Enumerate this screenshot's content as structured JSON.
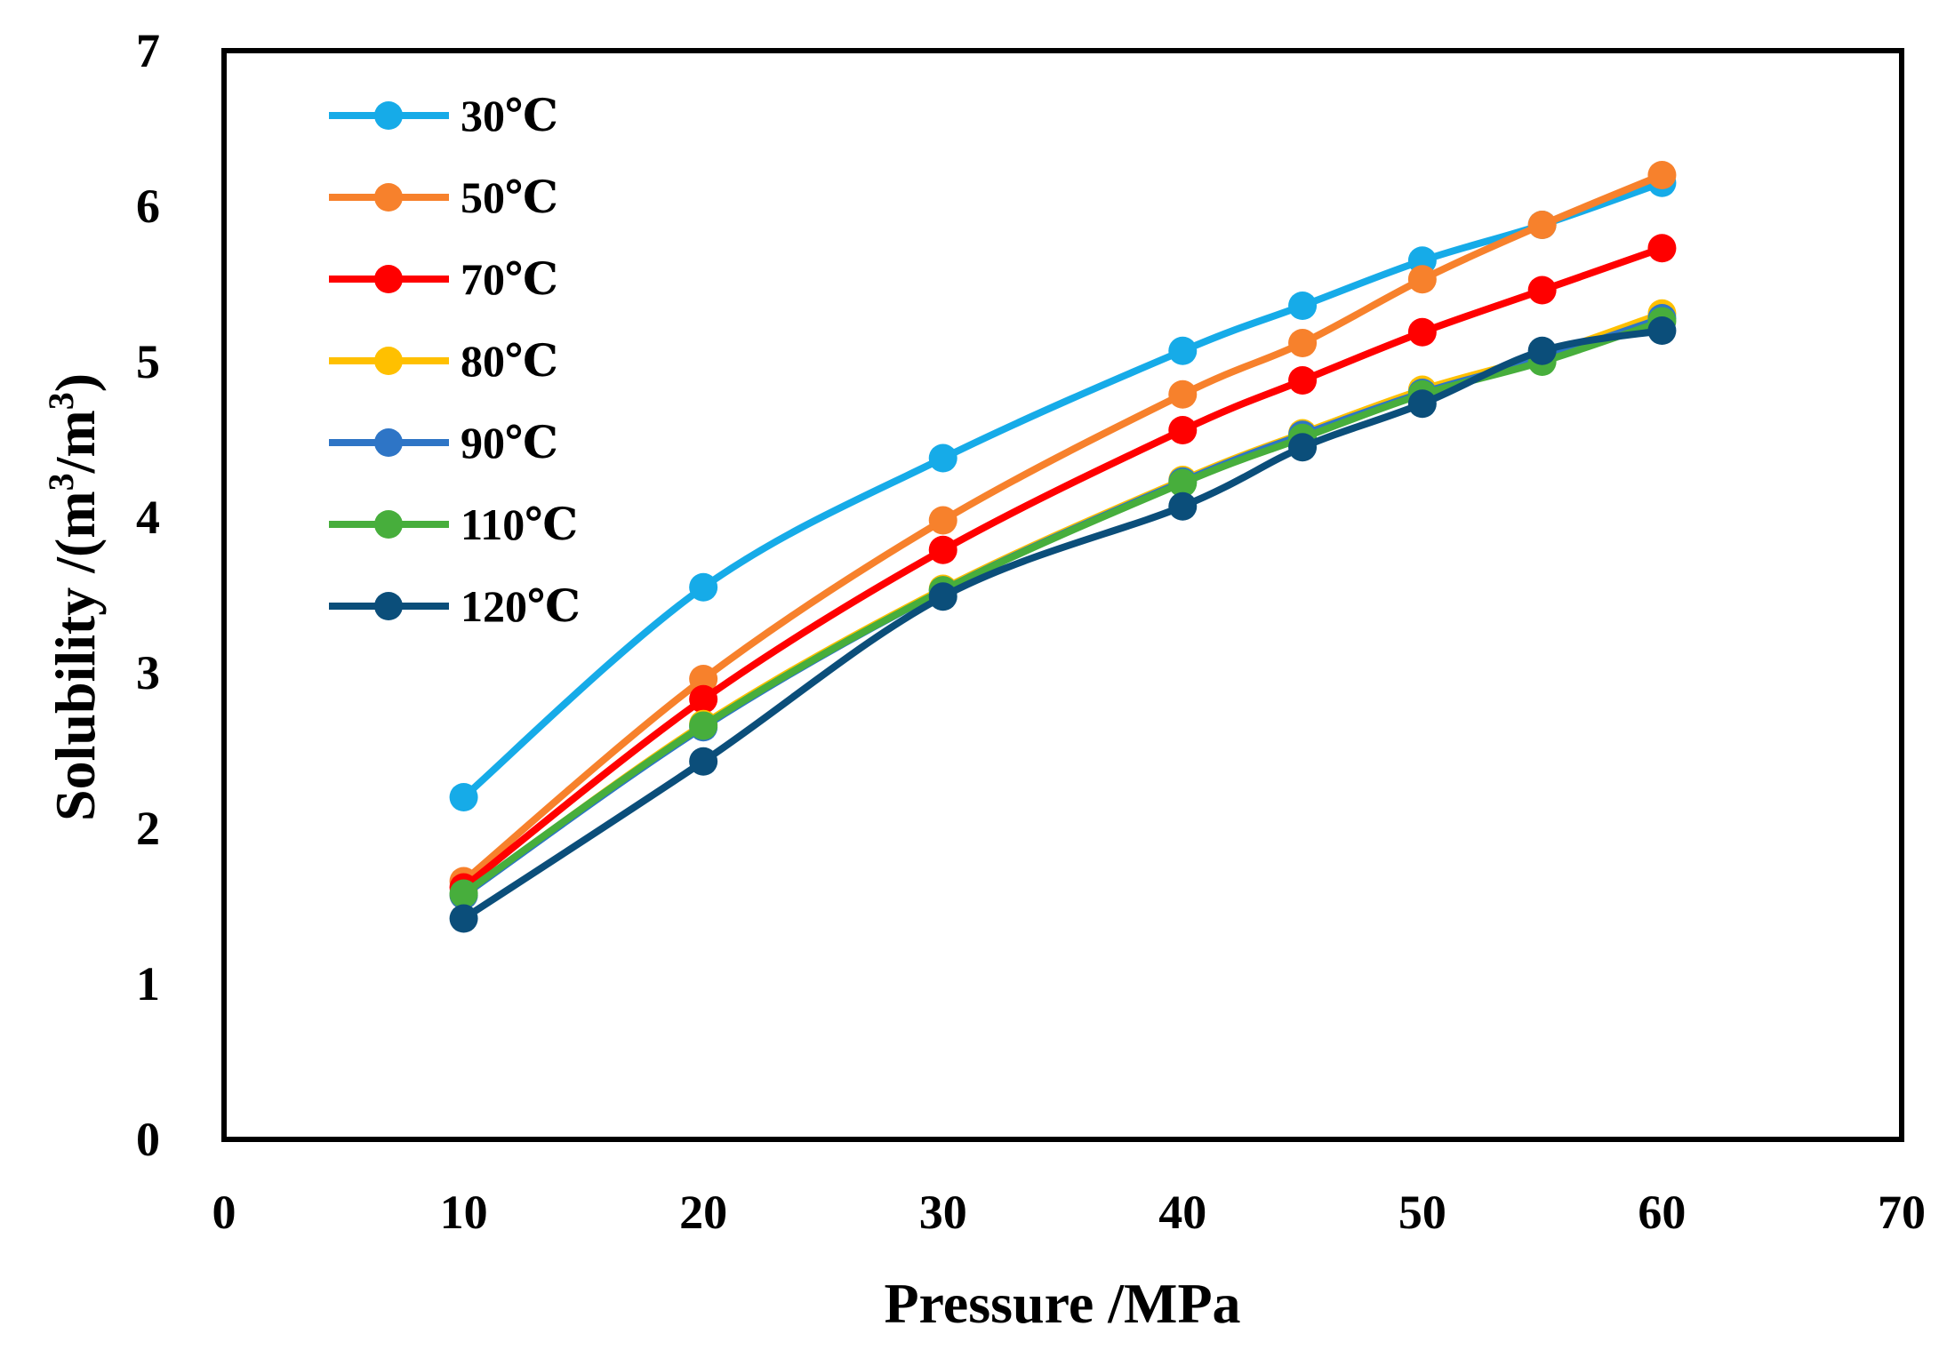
{
  "chart_data": {
    "type": "line",
    "title": "",
    "xlabel": "Pressure /MPa",
    "ylabel_parts": [
      "Solubility /(m",
      "3",
      "/m",
      "3",
      ")"
    ],
    "xlim": [
      0,
      70
    ],
    "ylim": [
      0,
      7
    ],
    "xticks": [
      0,
      10,
      20,
      30,
      40,
      50,
      60,
      70
    ],
    "yticks": [
      0,
      1,
      2,
      3,
      4,
      5,
      6,
      7
    ],
    "grid": false,
    "legend_position": "top-left",
    "x": [
      10,
      20,
      30,
      40,
      45,
      50,
      55,
      60
    ],
    "series": [
      {
        "name": "30℃",
        "color": "#16ABE8",
        "values": [
          2.2,
          3.55,
          4.38,
          5.07,
          5.36,
          5.65,
          5.88,
          6.15
        ]
      },
      {
        "name": "50℃",
        "color": "#F7812C",
        "values": [
          1.66,
          2.96,
          3.98,
          4.79,
          5.12,
          5.53,
          5.88,
          6.2
        ]
      },
      {
        "name": "70℃",
        "color": "#FF0000",
        "values": [
          1.62,
          2.83,
          3.79,
          4.56,
          4.88,
          5.19,
          5.46,
          5.73
        ]
      },
      {
        "name": "80℃",
        "color": "#FFC000",
        "values": [
          1.57,
          2.67,
          3.54,
          4.24,
          4.54,
          4.82,
          5.04,
          5.31
        ]
      },
      {
        "name": "90℃",
        "color": "#2E75C6",
        "values": [
          1.57,
          2.65,
          3.53,
          4.23,
          4.53,
          4.8,
          5.02,
          5.28
        ]
      },
      {
        "name": "110℃",
        "color": "#47AE3C",
        "values": [
          1.58,
          2.66,
          3.53,
          4.22,
          4.51,
          4.79,
          5.0,
          5.26
        ]
      },
      {
        "name": "120℃",
        "color": "#0B4E7A",
        "values": [
          1.42,
          2.43,
          3.49,
          4.07,
          4.45,
          4.73,
          5.07,
          5.2
        ]
      }
    ]
  }
}
